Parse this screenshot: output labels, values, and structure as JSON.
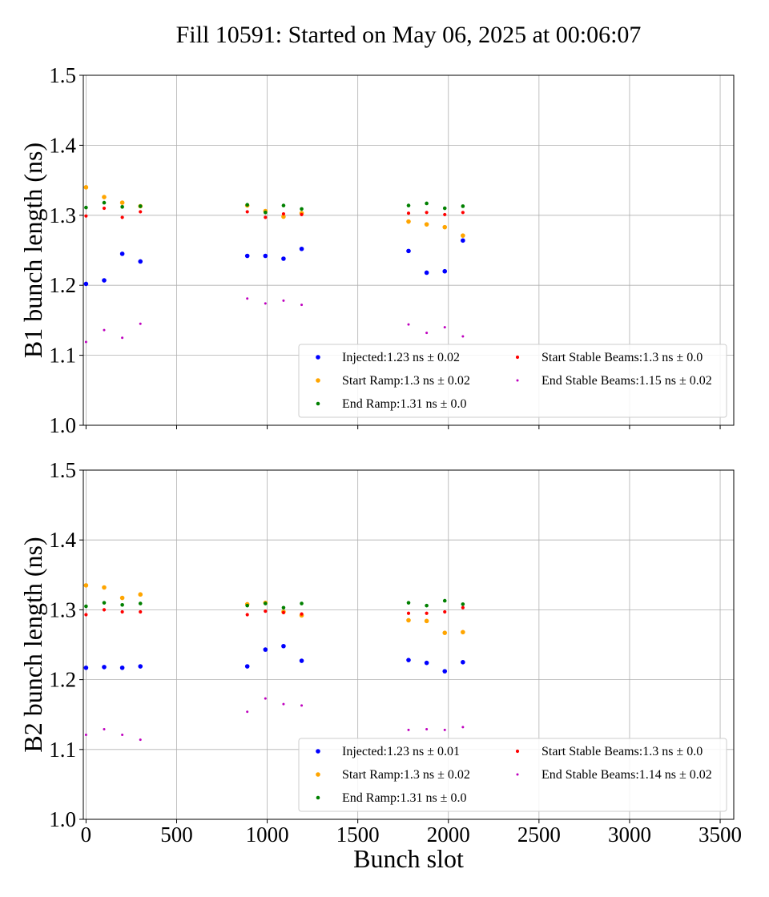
{
  "title": "Fill 10591: Started on May 06, 2025 at 00:06:07",
  "xlabel": "Bunch slot",
  "colors": {
    "Injected": "#0000ff",
    "Start Ramp": "#ffa500",
    "End Ramp": "#008000",
    "Start Stable Beams": "#ff0000",
    "End Stable Beams": "#bf00bf"
  },
  "chart_data": [
    {
      "type": "scatter",
      "ylabel": "B1 bunch length (ns)",
      "xlim": [
        -15,
        3575
      ],
      "ylim": [
        1.0,
        1.5
      ],
      "xticks": [
        0,
        500,
        1000,
        1500,
        2000,
        2500,
        3000,
        3500
      ],
      "yticks": [
        "1.0",
        "1.1",
        "1.2",
        "1.3",
        "1.4",
        "1.5"
      ],
      "grid": true,
      "legend_position": "lower-right",
      "series": [
        {
          "name": "Injected",
          "label": "Injected:1.23 ns ± 0.02",
          "x": [
            0,
            100,
            200,
            300,
            890,
            990,
            1090,
            1190,
            1780,
            1880,
            1980,
            2080
          ],
          "y": [
            1.202,
            1.207,
            1.245,
            1.234,
            1.242,
            1.242,
            1.238,
            1.252,
            1.249,
            1.218,
            1.22,
            1.264
          ]
        },
        {
          "name": "Start Ramp",
          "label": "Start Ramp:1.3 ns ± 0.02",
          "x": [
            0,
            100,
            200,
            300,
            890,
            990,
            1090,
            1190,
            1780,
            1880,
            1980,
            2080
          ],
          "y": [
            1.34,
            1.326,
            1.318,
            1.313,
            1.314,
            1.306,
            1.298,
            1.303,
            1.291,
            1.287,
            1.283,
            1.271
          ]
        },
        {
          "name": "End Ramp",
          "label": "End Ramp:1.31 ns ± 0.0",
          "x": [
            0,
            100,
            200,
            300,
            890,
            990,
            1090,
            1190,
            1780,
            1880,
            1980,
            2080
          ],
          "y": [
            1.311,
            1.318,
            1.312,
            1.313,
            1.315,
            1.304,
            1.314,
            1.309,
            1.314,
            1.317,
            1.31,
            1.313
          ]
        },
        {
          "name": "Start Stable Beams",
          "label": "Start Stable Beams:1.3 ns ± 0.0",
          "x": [
            0,
            100,
            200,
            300,
            890,
            990,
            1090,
            1190,
            1780,
            1880,
            1980,
            2080
          ],
          "y": [
            1.299,
            1.31,
            1.297,
            1.305,
            1.305,
            1.297,
            1.302,
            1.301,
            1.303,
            1.304,
            1.301,
            1.304
          ]
        },
        {
          "name": "End Stable Beams",
          "label": "End Stable Beams:1.15 ns ± 0.02",
          "x": [
            0,
            100,
            200,
            300,
            890,
            990,
            1090,
            1190,
            1780,
            1880,
            1980,
            2080
          ],
          "y": [
            1.119,
            1.136,
            1.125,
            1.145,
            1.181,
            1.174,
            1.178,
            1.172,
            1.144,
            1.132,
            1.14,
            1.127
          ]
        }
      ]
    },
    {
      "type": "scatter",
      "ylabel": "B2 bunch length (ns)",
      "xlim": [
        -15,
        3575
      ],
      "ylim": [
        1.0,
        1.5
      ],
      "xticks": [
        0,
        500,
        1000,
        1500,
        2000,
        2500,
        3000,
        3500
      ],
      "yticks": [
        "1.0",
        "1.1",
        "1.2",
        "1.3",
        "1.4",
        "1.5"
      ],
      "grid": true,
      "legend_position": "lower-right",
      "series": [
        {
          "name": "Injected",
          "label": "Injected:1.23 ns ± 0.01",
          "x": [
            0,
            100,
            200,
            300,
            890,
            990,
            1090,
            1190,
            1780,
            1880,
            1980,
            2080
          ],
          "y": [
            1.217,
            1.218,
            1.217,
            1.219,
            1.219,
            1.243,
            1.248,
            1.227,
            1.228,
            1.224,
            1.212,
            1.225
          ]
        },
        {
          "name": "Start Ramp",
          "label": "Start Ramp:1.3 ns ± 0.02",
          "x": [
            0,
            100,
            200,
            300,
            890,
            990,
            1090,
            1190,
            1780,
            1880,
            1980,
            2080
          ],
          "y": [
            1.335,
            1.332,
            1.317,
            1.322,
            1.308,
            1.31,
            1.297,
            1.292,
            1.285,
            1.284,
            1.267,
            1.268
          ]
        },
        {
          "name": "End Ramp",
          "label": "End Ramp:1.31 ns ± 0.0",
          "x": [
            0,
            100,
            200,
            300,
            890,
            990,
            1090,
            1190,
            1780,
            1880,
            1980,
            2080
          ],
          "y": [
            1.305,
            1.31,
            1.307,
            1.309,
            1.306,
            1.309,
            1.303,
            1.309,
            1.31,
            1.306,
            1.313,
            1.308
          ]
        },
        {
          "name": "Start Stable Beams",
          "label": "Start Stable Beams:1.3 ns ± 0.0",
          "x": [
            0,
            100,
            200,
            300,
            890,
            990,
            1090,
            1190,
            1780,
            1880,
            1980,
            2080
          ],
          "y": [
            1.293,
            1.3,
            1.297,
            1.297,
            1.293,
            1.298,
            1.296,
            1.294,
            1.295,
            1.295,
            1.297,
            1.303
          ]
        },
        {
          "name": "End Stable Beams",
          "label": "End Stable Beams:1.14 ns ± 0.02",
          "x": [
            0,
            100,
            200,
            300,
            890,
            990,
            1090,
            1190,
            1780,
            1880,
            1980,
            2080
          ],
          "y": [
            1.121,
            1.129,
            1.121,
            1.114,
            1.154,
            1.173,
            1.165,
            1.163,
            1.128,
            1.129,
            1.128,
            1.132
          ]
        }
      ]
    }
  ]
}
